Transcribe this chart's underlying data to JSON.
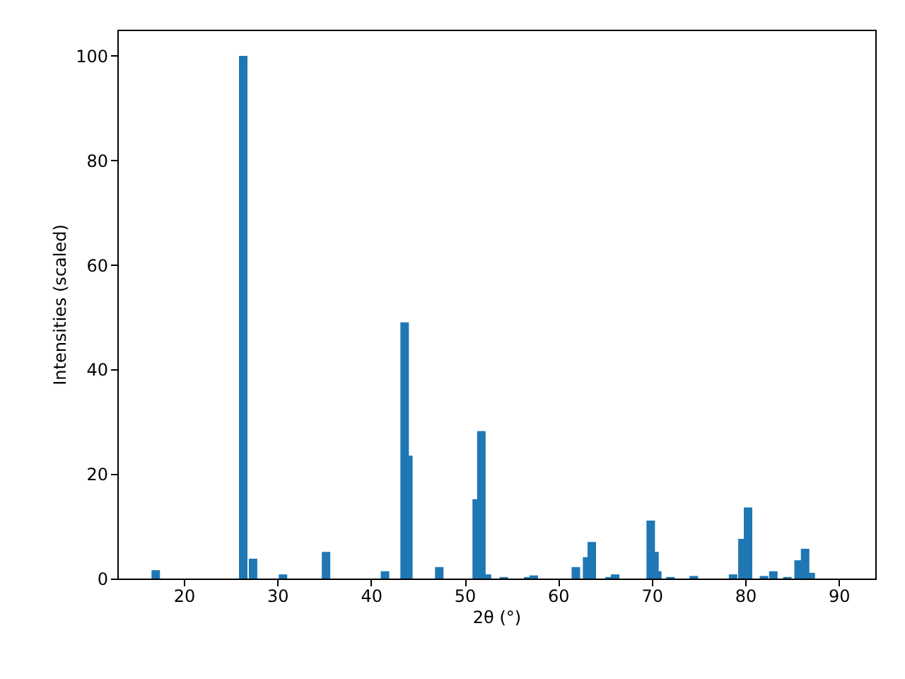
{
  "chart_data": {
    "type": "bar",
    "xlabel": "2θ (°)",
    "ylabel": "Intensities (scaled)",
    "x": [
      17.0,
      26.35,
      27.4,
      30.6,
      35.2,
      41.5,
      43.6,
      44.0,
      47.3,
      51.3,
      51.8,
      52.4,
      54.2,
      56.8,
      57.4,
      61.9,
      63.1,
      63.6,
      65.5,
      66.1,
      69.9,
      70.3,
      70.6,
      72.0,
      74.5,
      78.7,
      79.7,
      80.3,
      82.0,
      83.0,
      84.5,
      85.7,
      86.4,
      87.0
    ],
    "values": [
      1.6,
      100,
      3.8,
      0.8,
      5.1,
      1.4,
      49,
      23.5,
      2.2,
      15.2,
      28.2,
      0.8,
      0.3,
      0.3,
      0.6,
      2.2,
      4.1,
      7.0,
      0.3,
      0.8,
      11.1,
      5.1,
      1.4,
      0.3,
      0.5,
      0.8,
      7.6,
      13.6,
      0.5,
      1.4,
      0.3,
      3.5,
      5.7,
      1.1
    ],
    "color": "#1f77b4",
    "xlim": [
      12.9,
      93.9
    ],
    "xticks": [
      20,
      30,
      40,
      50,
      60,
      70,
      80,
      90
    ],
    "ylim": [
      0,
      105
    ],
    "yticks": [
      0,
      20,
      40,
      60,
      80,
      100
    ],
    "grid": false
  }
}
